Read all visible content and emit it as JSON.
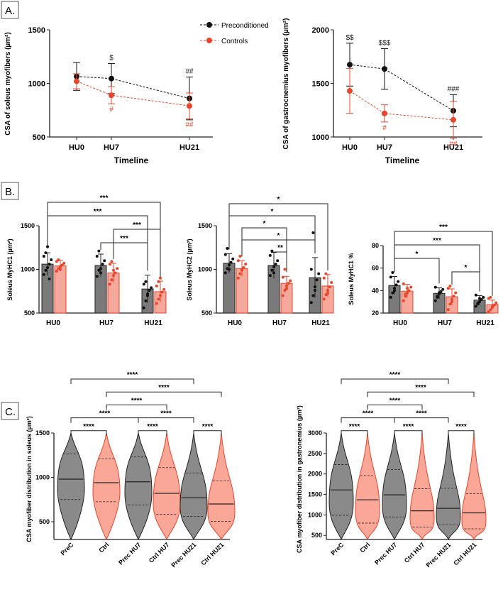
{
  "panel_labels": [
    "A.",
    "B.",
    "C."
  ],
  "colors": {
    "preconditioned": "#111111",
    "controls": "#e8452c",
    "bar_prec": "#7a7a7a",
    "bar_ctrl": "#f6a89a",
    "violin_prec": "#8a8a8a",
    "violin_ctrl": "#fba798"
  },
  "chart_data": [
    {
      "id": "A1",
      "type": "line",
      "ylabel": "CSA of soleus myofibers (µm²)",
      "xlabel": "Timeline",
      "categories": [
        "HU0",
        "HU7",
        "HU21"
      ],
      "x": [
        0,
        7,
        21
      ],
      "ylim": [
        500,
        1500
      ],
      "yticks": [
        500,
        1000,
        1500
      ],
      "legend": [
        "Preconditioned",
        "Controls"
      ],
      "series": [
        {
          "name": "Preconditioned",
          "values": [
            1065,
            1045,
            860
          ],
          "err": [
            130,
            140,
            200
          ],
          "marks": [
            "",
            "$",
            "##"
          ]
        },
        {
          "name": "Controls",
          "values": [
            1020,
            890,
            790
          ],
          "err": [
            70,
            80,
            120
          ],
          "marks": [
            "",
            "#",
            "##"
          ]
        }
      ]
    },
    {
      "id": "A2",
      "type": "line",
      "ylabel": "CSA of gastrocnemius myofibers (µm²)",
      "xlabel": "Timeline",
      "categories": [
        "HU0",
        "HU7",
        "HU21"
      ],
      "x": [
        0,
        7,
        21
      ],
      "ylim": [
        1000,
        2000
      ],
      "yticks": [
        1000,
        1500,
        2000
      ],
      "series": [
        {
          "name": "Preconditioned",
          "values": [
            1675,
            1635,
            1245
          ],
          "err": [
            200,
            190,
            150
          ],
          "marks": [
            "$$",
            "$$$",
            "###"
          ]
        },
        {
          "name": "Controls",
          "values": [
            1430,
            1220,
            1160
          ],
          "err": [
            210,
            80,
            170
          ],
          "marks": [
            "",
            "#",
            "##"
          ]
        }
      ]
    },
    {
      "id": "B1",
      "type": "bar",
      "ylabel": "Soleus MyHC1 (µm²)",
      "categories": [
        "HU0",
        "HU7",
        "HU21"
      ],
      "ylim": [
        500,
        1500
      ],
      "yticks": [
        500,
        1000,
        1500
      ],
      "series": [
        {
          "name": "Preconditioned",
          "values": [
            1060,
            1045,
            775
          ],
          "err": [
            130,
            130,
            160
          ],
          "points": [
            [
              940,
              990,
              1020,
              1060,
              1110,
              1150,
              1190,
              1260,
              890
            ],
            [
              920,
              990,
              1010,
              1060,
              1100,
              1150,
              1210,
              960
            ],
            [
              560,
              640,
              720,
              760,
              790,
              830,
              860,
              700
            ]
          ]
        },
        {
          "name": "Controls",
          "values": [
            1040,
            960,
            745
          ],
          "err": [
            60,
            110,
            120
          ],
          "points": [
            [
              980,
              1010,
              1030,
              1050,
              1070,
              1090,
              1110,
              1000
            ],
            [
              830,
              880,
              930,
              960,
              1010,
              1060,
              1090,
              990
            ],
            [
              610,
              660,
              700,
              740,
              770,
              810,
              860,
              900
            ]
          ]
        }
      ],
      "sig": [
        {
          "a": [
            0,
            0
          ],
          "b": [
            2,
            1
          ],
          "label": "***"
        },
        {
          "a": [
            0,
            0
          ],
          "b": [
            2,
            0
          ],
          "label": "***"
        },
        {
          "a": [
            1,
            1
          ],
          "b": [
            2,
            1
          ],
          "label": "***"
        },
        {
          "a": [
            1,
            0
          ],
          "b": [
            2,
            0
          ],
          "label": "***"
        }
      ]
    },
    {
      "id": "B2",
      "type": "bar",
      "ylabel": "Soleus MyHC2 (µm²)",
      "categories": [
        "HU0",
        "HU7",
        "HU21"
      ],
      "ylim": [
        500,
        1500
      ],
      "yticks": [
        500,
        1000,
        1500
      ],
      "series": [
        {
          "name": "Preconditioned",
          "values": [
            1070,
            1045,
            905
          ],
          "err": [
            110,
            150,
            230
          ],
          "points": [
            [
              960,
              1010,
              1050,
              1080,
              1120,
              1170,
              1240,
              1000
            ],
            [
              930,
              990,
              1030,
              1060,
              1100,
              1160,
              1210,
              960
            ],
            [
              620,
              700,
              800,
              880,
              950,
              1000,
              1420,
              760
            ]
          ]
        },
        {
          "name": "Controls",
          "values": [
            1010,
            840,
            810
          ],
          "err": [
            90,
            80,
            130
          ],
          "points": [
            [
              900,
              950,
              990,
              1020,
              1060,
              1100,
              1150,
              1000
            ],
            [
              700,
              760,
              810,
              840,
              870,
              910,
              1000,
              780
            ],
            [
              660,
              710,
              760,
              800,
              850,
              900,
              950,
              730
            ]
          ]
        }
      ],
      "sig": [
        {
          "a": [
            0,
            0
          ],
          "b": [
            2,
            1
          ],
          "label": "*"
        },
        {
          "a": [
            0,
            0
          ],
          "b": [
            2,
            0
          ],
          "label": "*"
        },
        {
          "a": [
            0,
            1
          ],
          "b": [
            1,
            1
          ],
          "label": "*"
        },
        {
          "a": [
            0,
            1
          ],
          "b": [
            2,
            0
          ],
          "label": "*"
        },
        {
          "a": [
            1,
            0
          ],
          "b": [
            1,
            1
          ],
          "label": "**"
        }
      ]
    },
    {
      "id": "B3",
      "type": "bar",
      "ylabel": "Soleus MyHC1 %",
      "categories": [
        "HU0",
        "HU7",
        "HU21"
      ],
      "ylim": [
        20,
        80
      ],
      "yticks": [
        20,
        40,
        60,
        80
      ],
      "series": [
        {
          "name": "Preconditioned",
          "values": [
            44.5,
            37.5,
            31.5
          ],
          "err": [
            8,
            5,
            4
          ],
          "points": [
            [
              34,
              38,
              42,
              45,
              48,
              52,
              56,
              40
            ],
            [
              31,
              34,
              37,
              39,
              41,
              43,
              35,
              38
            ],
            [
              26,
              28,
              30,
              32,
              34,
              36,
              29,
              33
            ]
          ]
        },
        {
          "name": "Controls",
          "values": [
            39.5,
            34.5,
            27.5
          ],
          "err": [
            6,
            7,
            4
          ],
          "points": [
            [
              31,
              35,
              38,
              40,
              43,
              46,
              37,
              42
            ],
            [
              23,
              28,
              32,
              35,
              38,
              42,
              44,
              30
            ],
            [
              21,
              23,
              25,
              27,
              29,
              33,
              34,
              26
            ]
          ]
        }
      ],
      "sig": [
        {
          "a": [
            0,
            0
          ],
          "b": [
            2,
            1
          ],
          "label": "***"
        },
        {
          "a": [
            0,
            0
          ],
          "b": [
            2,
            0
          ],
          "label": "***"
        },
        {
          "a": [
            0,
            0
          ],
          "b": [
            1,
            0
          ],
          "label": "*"
        },
        {
          "a": [
            1,
            1
          ],
          "b": [
            2,
            0
          ],
          "label": "*"
        }
      ]
    },
    {
      "id": "C1",
      "type": "violin",
      "ylabel": "CSA myofiber distribution in soleus (µm²)",
      "categories": [
        "PreC",
        "Ctrl",
        "Prec HU7",
        "Ctrl HU7",
        "Prec HU21",
        "Ctrl HU21"
      ],
      "ylim": [
        300,
        1500
      ],
      "yticks": [
        500,
        1000,
        1500
      ],
      "groups": [
        "prec",
        "ctrl",
        "prec",
        "ctrl",
        "prec",
        "ctrl"
      ],
      "median": [
        980,
        940,
        950,
        820,
        770,
        700
      ],
      "q1": [
        750,
        725,
        690,
        585,
        560,
        505
      ],
      "q3": [
        1265,
        1210,
        1230,
        1110,
        1050,
        960
      ],
      "sig": [
        {
          "a": 0,
          "b": 4,
          "label": "****"
        },
        {
          "a": 1,
          "b": 5,
          "label": "****"
        },
        {
          "a": 1,
          "b": 3,
          "label": "****"
        },
        {
          "a": 0,
          "b": 2,
          "label": "****"
        },
        {
          "a": 2,
          "b": 4,
          "label": "****"
        },
        {
          "a": 0,
          "b": 1,
          "label": "****"
        },
        {
          "a": 2,
          "b": 3,
          "label": "****"
        },
        {
          "a": 4,
          "b": 5,
          "label": "****"
        }
      ]
    },
    {
      "id": "C2",
      "type": "violin",
      "ylabel": "CSA myofiber distribution in gastronemius (µm²)",
      "categories": [
        "PreC",
        "Ctrl",
        "Prec HU7",
        "Ctrl HU7",
        "Prec HU21",
        "Ctrl HU21"
      ],
      "ylim": [
        400,
        3000
      ],
      "yticks": [
        500,
        1000,
        1500,
        2000,
        2500,
        3000
      ],
      "groups": [
        "prec",
        "ctrl",
        "prec",
        "ctrl",
        "prec",
        "ctrl"
      ],
      "median": [
        1610,
        1370,
        1490,
        1100,
        1160,
        1050
      ],
      "q1": [
        990,
        800,
        950,
        700,
        760,
        660
      ],
      "q3": [
        2230,
        1960,
        2110,
        1640,
        1650,
        1520
      ],
      "sig": [
        {
          "a": 0,
          "b": 4,
          "label": "****"
        },
        {
          "a": 1,
          "b": 5,
          "label": "****"
        },
        {
          "a": 1,
          "b": 3,
          "label": "****"
        },
        {
          "a": 0,
          "b": 2,
          "label": "****"
        },
        {
          "a": 2,
          "b": 4,
          "label": "****"
        },
        {
          "a": 0,
          "b": 1,
          "label": "****"
        },
        {
          "a": 2,
          "b": 3,
          "label": "****"
        },
        {
          "a": 4,
          "b": 5,
          "label": "****"
        }
      ]
    }
  ]
}
